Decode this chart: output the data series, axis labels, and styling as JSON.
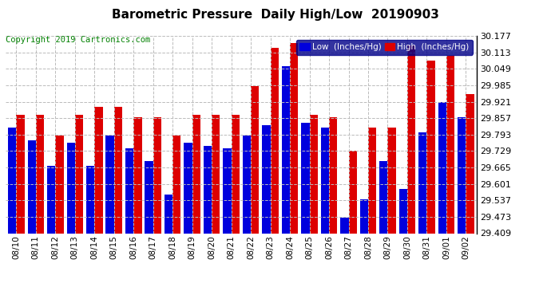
{
  "title": "Barometric Pressure  Daily High/Low  20190903",
  "copyright": "Copyright 2019 Cartronics.com",
  "ylabel_right_values": [
    29.409,
    29.473,
    29.537,
    29.601,
    29.665,
    29.729,
    29.793,
    29.857,
    29.921,
    29.985,
    30.049,
    30.113,
    30.177
  ],
  "ymin": 29.409,
  "ymax": 30.177,
  "dates": [
    "08/10",
    "08/11",
    "08/12",
    "08/13",
    "08/14",
    "08/15",
    "08/16",
    "08/17",
    "08/18",
    "08/19",
    "08/20",
    "08/21",
    "08/22",
    "08/23",
    "08/24",
    "08/25",
    "08/26",
    "08/27",
    "08/28",
    "08/29",
    "08/30",
    "08/31",
    "09/01",
    "09/02"
  ],
  "low_values": [
    29.82,
    29.77,
    29.67,
    29.76,
    29.67,
    29.79,
    29.74,
    29.69,
    29.56,
    29.76,
    29.75,
    29.74,
    29.79,
    29.83,
    30.06,
    29.84,
    29.82,
    29.47,
    29.54,
    29.69,
    29.58,
    29.8,
    29.92,
    29.86
  ],
  "high_values": [
    29.87,
    29.87,
    29.79,
    29.87,
    29.9,
    29.9,
    29.86,
    29.86,
    29.79,
    29.87,
    29.87,
    29.87,
    29.98,
    30.13,
    30.15,
    29.87,
    29.86,
    29.73,
    29.82,
    29.82,
    30.14,
    30.08,
    30.1,
    29.95
  ],
  "low_color": "#0000dd",
  "high_color": "#dd0000",
  "bg_color": "#ffffff",
  "plot_bg_color": "#ffffff",
  "grid_color": "#aaaaaa",
  "title_fontsize": 11,
  "border_color": "#000000",
  "legend_low_label": "Low  (Inches/Hg)",
  "legend_high_label": "High  (Inches/Hg)"
}
